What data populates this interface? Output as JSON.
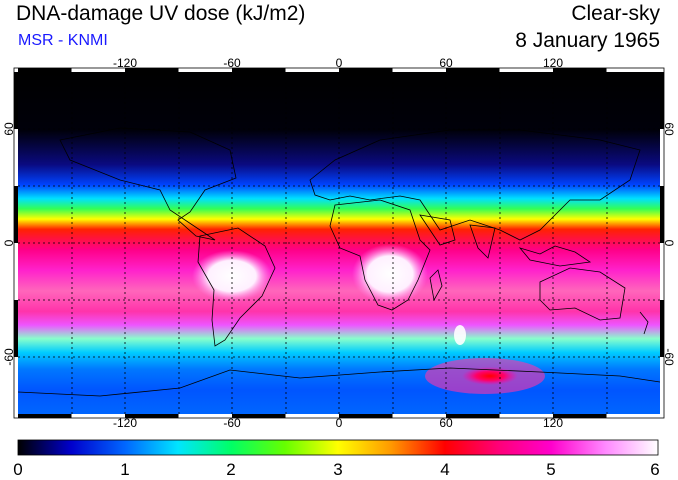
{
  "header": {
    "title": "DNA-damage UV dose (kJ/m2)",
    "source": "MSR - KNMI",
    "condition": "Clear-sky",
    "date": "8 January 1965"
  },
  "colors": {
    "source_text": "#1a1aff"
  },
  "map": {
    "lon_ticks": [
      "-120",
      "-60",
      "0",
      "60",
      "120"
    ],
    "lat_ticks": [
      "60",
      "0",
      "-60"
    ],
    "lon_range": [
      -180,
      180
    ],
    "lat_range": [
      -90,
      90
    ],
    "gridlines": "dashed every 30 degrees"
  },
  "colorbar": {
    "labels": [
      "0",
      "1",
      "2",
      "3",
      "4",
      "5",
      "6"
    ],
    "range": [
      0,
      6
    ],
    "colormap": [
      "#000000",
      "#0000cc",
      "#0066ff",
      "#00e5ff",
      "#00ff66",
      "#66ff00",
      "#ffff00",
      "#ff9900",
      "#ff0000",
      "#ff0077",
      "#ff00cc",
      "#ff88ff",
      "#ffffff"
    ]
  }
}
